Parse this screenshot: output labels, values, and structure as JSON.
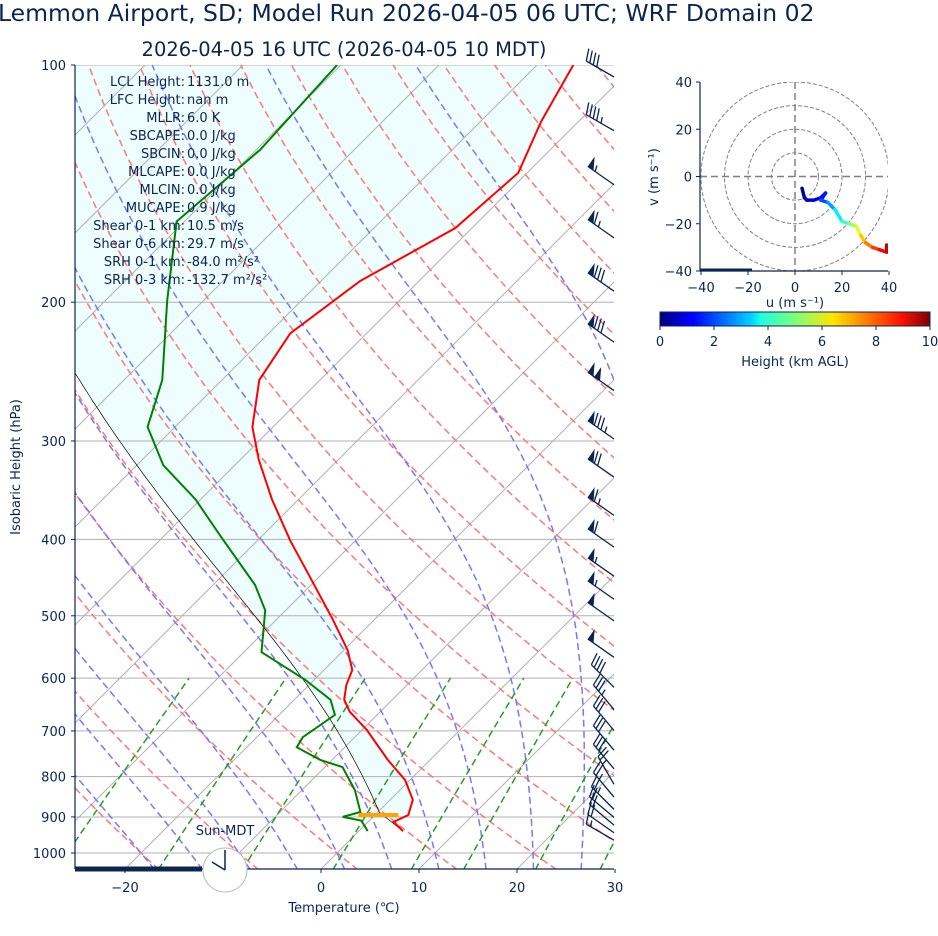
{
  "title": "Lemmon Airport, SD; Model Run 2026-04-05 06 UTC; WRF Domain 02",
  "subtitle": "2026-04-05 16 UTC  (2026-04-05 10 MDT)",
  "stats": [
    {
      "label": "LCL Height:",
      "value": "1131.0 m"
    },
    {
      "label": "LFC Height:",
      "value": "nan m"
    },
    {
      "label": "MLLR:",
      "value": "6.0 K"
    },
    {
      "label": "SBCAPE:",
      "value": "0.0 J/kg"
    },
    {
      "label": "SBCIN:",
      "value": "0.0 J/kg"
    },
    {
      "label": "MLCAPE:",
      "value": "0.0 J/kg"
    },
    {
      "label": "MLCIN:",
      "value": "0.0 J/kg"
    },
    {
      "label": "MUCAPE:",
      "value": "0.9 J/kg"
    },
    {
      "label": "Shear 0-1 km:",
      "value": "10.5 m/s"
    },
    {
      "label": "Shear 0-6 km:",
      "value": "29.7 m/s"
    },
    {
      "label": "SRH 0-1 km:",
      "value": "-84.0 m²/s²"
    },
    {
      "label": "SRH 0-3 km:",
      "value": "-132.7 m²/s²"
    }
  ],
  "sun_label": "Sun-MDT",
  "clock_time": "10:00",
  "chart_data": [
    {
      "type": "skew-t",
      "xlabel": "Temperature (℃)",
      "ylabel": "Isobaric Height (hPa)",
      "xlim": [
        -25,
        30
      ],
      "ylim": [
        1050,
        100
      ],
      "y_scale": "log",
      "x_ticks": [
        -20,
        0,
        10,
        20,
        30
      ],
      "x_tick_labels": [
        "−20",
        "0",
        "10",
        "20",
        "30"
      ],
      "y_ticks": [
        100,
        200,
        300,
        400,
        500,
        600,
        700,
        800,
        900,
        1000
      ],
      "y_tick_labels": [
        "100",
        "200",
        "300",
        "400",
        "500",
        "600",
        "700",
        "800",
        "900",
        "1000"
      ],
      "grid": true,
      "colors": {
        "temperature": "#ff0000",
        "dewpoint": "#008000",
        "parcel": "#000000",
        "cin_fill": "#eefefe",
        "dry_adiabat": "#ff7777",
        "moist_adiabat": "#7777ff",
        "mixing_ratio": "#2a9a2a",
        "isotherm": "#b0b0b0",
        "marker": "#ffa500",
        "barbs": "#0b2450"
      },
      "temperature": [
        [
          938,
          4.5
        ],
        [
          913,
          2.6
        ],
        [
          895,
          3.4
        ],
        [
          856,
          2.3
        ],
        [
          808,
          -0.5
        ],
        [
          762,
          -4.3
        ],
        [
          698,
          -9.5
        ],
        [
          662,
          -13.1
        ],
        [
          639,
          -14.9
        ],
        [
          612,
          -16.2
        ],
        [
          586,
          -17.1
        ],
        [
          553,
          -19.6
        ],
        [
          506,
          -24.2
        ],
        [
          450,
          -30.5
        ],
        [
          401,
          -36.7
        ],
        [
          356,
          -42.7
        ],
        [
          317,
          -48.1
        ],
        [
          288,
          -52.1
        ],
        [
          251,
          -56.2
        ],
        [
          219,
          -57.8
        ],
        [
          188,
          -56.0
        ],
        [
          161,
          -51.7
        ],
        [
          137,
          -50.9
        ],
        [
          118,
          -53.8
        ],
        [
          100,
          -56.3
        ]
      ],
      "dewpoint": [
        [
          938,
          0.9
        ],
        [
          910,
          -0.8
        ],
        [
          900,
          -3.1
        ],
        [
          887,
          -1.8
        ],
        [
          832,
          -4.6
        ],
        [
          778,
          -8.2
        ],
        [
          762,
          -11.2
        ],
        [
          734,
          -14.9
        ],
        [
          713,
          -15.3
        ],
        [
          668,
          -14.3
        ],
        [
          639,
          -16.3
        ],
        [
          603,
          -20.9
        ],
        [
          556,
          -28.2
        ],
        [
          492,
          -32.1
        ],
        [
          457,
          -35.7
        ],
        [
          395,
          -44.4
        ],
        [
          356,
          -50.5
        ],
        [
          322,
          -57.3
        ],
        [
          288,
          -62.8
        ],
        [
          251,
          -66.1
        ],
        [
          199,
          -73.7
        ],
        [
          158,
          -80.8
        ],
        [
          128,
          -79.6
        ],
        [
          100,
          -80.4
        ]
      ],
      "marker": {
        "p": 895,
        "T": [
          -1.7,
          2.4
        ]
      },
      "dry_adiabats_T0_1000hPa": [
        -40,
        -30,
        -20,
        -10,
        0,
        10,
        20,
        30,
        40,
        50,
        60,
        70,
        80,
        90,
        100,
        110,
        120,
        130,
        140,
        150,
        160
      ],
      "moist_adiabats_T0_1000hPa": [
        -20,
        -15,
        -10,
        -5,
        0,
        5,
        10,
        15,
        20,
        25,
        30
      ],
      "mixing_ratios_gkg": [
        0.4,
        1,
        2,
        4,
        7,
        10,
        16,
        24,
        32
      ],
      "isotherms": [
        -110,
        -100,
        -90,
        -80,
        -70,
        -60,
        -50,
        -40,
        -30,
        -20,
        -10,
        0,
        10,
        20,
        30,
        40
      ],
      "wind_barbs": [
        {
          "p": 100,
          "speed_kt": 40,
          "dir": 300
        },
        {
          "p": 117,
          "speed_kt": 45,
          "dir": 300
        },
        {
          "p": 137,
          "speed_kt": 55,
          "dir": 305
        },
        {
          "p": 160,
          "speed_kt": 65,
          "dir": 305
        },
        {
          "p": 187,
          "speed_kt": 80,
          "dir": 305
        },
        {
          "p": 217,
          "speed_kt": 80,
          "dir": 305
        },
        {
          "p": 250,
          "speed_kt": 100,
          "dir": 305
        },
        {
          "p": 288,
          "speed_kt": 85,
          "dir": 305
        },
        {
          "p": 322,
          "speed_kt": 70,
          "dir": 305
        },
        {
          "p": 360,
          "speed_kt": 65,
          "dir": 305
        },
        {
          "p": 395,
          "speed_kt": 60,
          "dir": 305
        },
        {
          "p": 430,
          "speed_kt": 55,
          "dir": 305
        },
        {
          "p": 460,
          "speed_kt": 55,
          "dir": 305
        },
        {
          "p": 490,
          "speed_kt": 50,
          "dir": 305
        },
        {
          "p": 545,
          "speed_kt": 50,
          "dir": 305
        },
        {
          "p": 595,
          "speed_kt": 40,
          "dir": 315
        },
        {
          "p": 635,
          "speed_kt": 35,
          "dir": 320
        },
        {
          "p": 675,
          "speed_kt": 30,
          "dir": 320
        },
        {
          "p": 715,
          "speed_kt": 30,
          "dir": 320
        },
        {
          "p": 755,
          "speed_kt": 30,
          "dir": 320
        },
        {
          "p": 790,
          "speed_kt": 25,
          "dir": 330
        },
        {
          "p": 820,
          "speed_kt": 25,
          "dir": 320
        },
        {
          "p": 850,
          "speed_kt": 25,
          "dir": 315
        },
        {
          "p": 870,
          "speed_kt": 20,
          "dir": 310
        },
        {
          "p": 890,
          "speed_kt": 20,
          "dir": 310
        },
        {
          "p": 910,
          "speed_kt": 20,
          "dir": 305
        },
        {
          "p": 930,
          "speed_kt": 15,
          "dir": 300
        }
      ]
    },
    {
      "type": "hodograph",
      "xlabel": "u (m s⁻¹)",
      "ylabel": "v (m s⁻¹)",
      "xlim": [
        -40,
        40
      ],
      "ylim": [
        -40,
        40
      ],
      "x_ticks": [
        -40,
        -20,
        0,
        20,
        40
      ],
      "x_tick_labels": [
        "−40",
        "−20",
        "0",
        "20",
        "40"
      ],
      "y_ticks": [
        -40,
        -20,
        0,
        20,
        40
      ],
      "y_tick_labels": [
        "−40",
        "−20",
        "0",
        "20",
        "40"
      ],
      "rings": [
        10,
        20,
        30,
        40
      ],
      "points_u_v_hkm": [
        [
          3,
          -5,
          0
        ],
        [
          4,
          -9,
          0.3
        ],
        [
          5,
          -10,
          0.6
        ],
        [
          8,
          -10,
          0.9
        ],
        [
          11,
          -9,
          1.1
        ],
        [
          13,
          -7,
          1.3
        ],
        [
          11,
          -10,
          1.6
        ],
        [
          14,
          -11,
          2.4
        ],
        [
          17,
          -14,
          3.2
        ],
        [
          20,
          -19,
          4.0
        ],
        [
          23,
          -20,
          4.6
        ],
        [
          26,
          -21,
          5.6
        ],
        [
          28,
          -25,
          6.4
        ],
        [
          30,
          -28,
          7.2
        ],
        [
          33,
          -30,
          7.9
        ],
        [
          36,
          -31,
          8.5
        ],
        [
          39,
          -32,
          9.0
        ],
        [
          39,
          -29,
          9.4
        ]
      ],
      "colorbar": {
        "label": "Height (km AGL)",
        "range": [
          0,
          10
        ],
        "ticks": [
          "0",
          "2",
          "4",
          "6",
          "8",
          "10"
        ],
        "colormap": "jet"
      }
    }
  ]
}
